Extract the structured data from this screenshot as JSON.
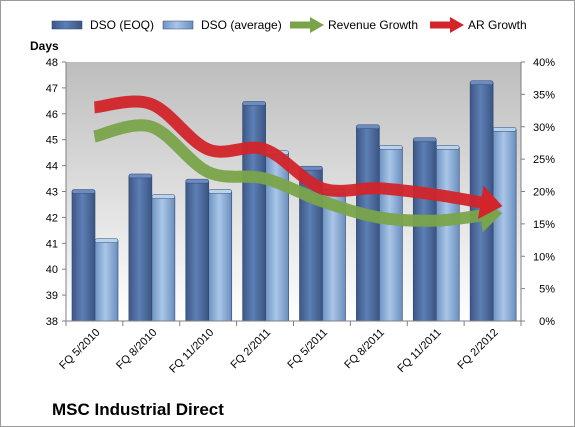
{
  "chart_data": {
    "type": "bar",
    "title": "MSC Industrial Direct",
    "ylabel_left": "Days",
    "categories": [
      "FQ 5/2010",
      "FQ 8/2010",
      "FQ 11/2010",
      "FQ 2/2011",
      "FQ 5/2011",
      "FQ 8/2011",
      "FQ 11/2011",
      "FQ 2/2012"
    ],
    "ylim_left": [
      38,
      48
    ],
    "yticks_left": [
      "38",
      "39",
      "40",
      "41",
      "42",
      "43",
      "44",
      "45",
      "46",
      "47",
      "48"
    ],
    "ylim_right": [
      0,
      40
    ],
    "yticks_right": [
      "0%",
      "5%",
      "10%",
      "15%",
      "20%",
      "25%",
      "30%",
      "35%",
      "40%"
    ],
    "grid": false,
    "legend_position": "top",
    "series": [
      {
        "name": "DSO (EOQ)",
        "kind": "bar",
        "axis": "left",
        "color": "#4f6d9e",
        "values": [
          43.0,
          43.6,
          43.4,
          46.4,
          43.9,
          45.5,
          45.0,
          47.2
        ]
      },
      {
        "name": "DSO (average)",
        "kind": "bar",
        "axis": "left",
        "color": "#8fb0d8",
        "values": [
          41.1,
          42.8,
          43.0,
          44.5,
          43.0,
          44.7,
          44.7,
          45.4
        ]
      },
      {
        "name": "Revenue Growth",
        "kind": "arrow-line",
        "axis": "right",
        "color": "#7aa44a",
        "values": [
          28.5,
          30.0,
          23.0,
          22.0,
          18.5,
          16.0,
          15.5,
          16.5
        ]
      },
      {
        "name": "AR Growth",
        "kind": "arrow-line",
        "axis": "right",
        "color": "#d2242a",
        "values": [
          33.0,
          33.5,
          26.5,
          26.5,
          20.5,
          20.5,
          19.5,
          18.0
        ]
      }
    ]
  }
}
